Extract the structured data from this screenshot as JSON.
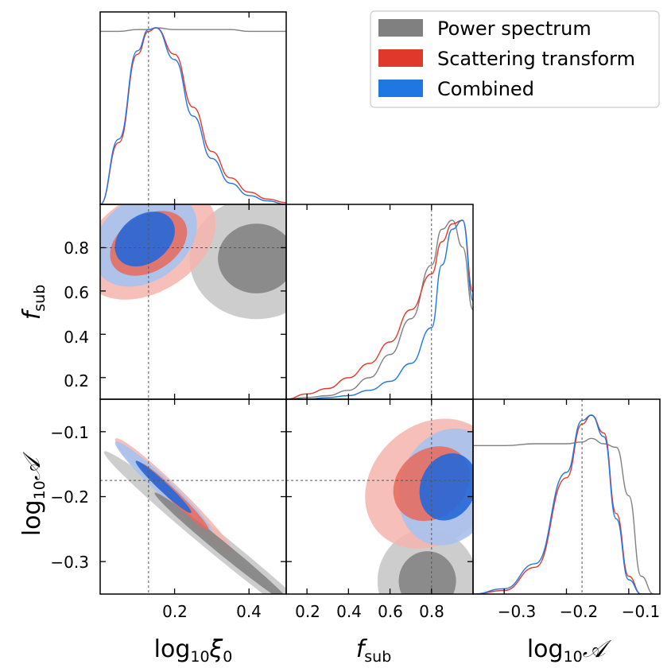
{
  "chart_data": {
    "type": "corner",
    "title": "",
    "parameters": [
      {
        "key": "xi",
        "label_base": "log",
        "label_sub": "10",
        "label_main": "ξ",
        "label_main_sub": "0",
        "truth": 0.13,
        "range": [
          0.0,
          0.5
        ],
        "ticks": [
          0.2,
          0.4
        ]
      },
      {
        "key": "fsub",
        "label_base": "",
        "label_sub": "",
        "label_main": "f",
        "label_main_sub": "sub",
        "truth": 0.8,
        "range": [
          0.1,
          1.0
        ],
        "ticks": [
          0.2,
          0.4,
          0.6,
          0.8
        ]
      },
      {
        "key": "logA",
        "label_base": "log",
        "label_sub": "10",
        "label_main": "𝒜",
        "label_main_sub": "",
        "truth": -0.175,
        "range": [
          -0.35,
          -0.05
        ],
        "ticks": [
          -0.3,
          -0.2,
          -0.1
        ]
      }
    ],
    "tick_labels": {
      "xi_x": [
        "0.2",
        "0.4"
      ],
      "fsub_x": [
        "0.2",
        "0.4",
        "0.6",
        "0.8"
      ],
      "fsub_y": [
        "0.2",
        "0.4",
        "0.6",
        "0.8"
      ],
      "logA_x": [
        "−0.3",
        "−0.2",
        "−0.1"
      ],
      "logA_y": [
        "−0.1",
        "−0.2",
        "−0.3"
      ]
    },
    "legend": {
      "placement": "top-right",
      "entries": [
        {
          "name": "Power spectrum",
          "color": "#808080"
        },
        {
          "name": "Scattering transform",
          "color": "#e0392b"
        },
        {
          "name": "Combined",
          "color": "#1f77e4"
        }
      ]
    },
    "fill_colors": {
      "power_spectrum": [
        "#c4c4c4",
        "#7f7f7f"
      ],
      "scattering_transform": [
        "#f4b4ad",
        "#e8685a"
      ],
      "combined": [
        "#a7c2ee",
        "#2668d8"
      ]
    },
    "marginals": {
      "xi": {
        "x": [
          0.0,
          0.05,
          0.1,
          0.13,
          0.15,
          0.2,
          0.25,
          0.3,
          0.35,
          0.4,
          0.45,
          0.5
        ],
        "power_spectrum": [
          0.98,
          0.98,
          0.99,
          0.99,
          1.0,
          0.99,
          0.99,
          0.99,
          0.99,
          0.98,
          0.98,
          0.98
        ],
        "scattering_transform": [
          0.0,
          0.35,
          0.85,
          0.98,
          1.0,
          0.85,
          0.55,
          0.3,
          0.15,
          0.07,
          0.03,
          0.01
        ],
        "combined": [
          0.0,
          0.37,
          0.87,
          0.99,
          1.0,
          0.82,
          0.5,
          0.26,
          0.12,
          0.05,
          0.02,
          0.0
        ]
      },
      "fsub": {
        "x": [
          0.1,
          0.2,
          0.3,
          0.4,
          0.5,
          0.6,
          0.7,
          0.8,
          0.85,
          0.9,
          0.95,
          1.0
        ],
        "power_spectrum": [
          0.0,
          0.01,
          0.02,
          0.05,
          0.12,
          0.25,
          0.45,
          0.75,
          0.95,
          1.0,
          0.85,
          0.5
        ],
        "scattering_transform": [
          0.0,
          0.03,
          0.06,
          0.12,
          0.2,
          0.32,
          0.5,
          0.7,
          0.88,
          0.98,
          1.0,
          0.6
        ],
        "combined": [
          0.0,
          0.0,
          0.01,
          0.02,
          0.05,
          0.1,
          0.2,
          0.4,
          0.75,
          0.95,
          1.0,
          0.55
        ]
      },
      "logA": {
        "x": [
          -0.35,
          -0.3,
          -0.25,
          -0.2,
          -0.175,
          -0.16,
          -0.14,
          -0.12,
          -0.1,
          -0.08,
          -0.06
        ],
        "power_spectrum": [
          0.83,
          0.83,
          0.84,
          0.84,
          0.85,
          0.87,
          0.84,
          0.82,
          0.55,
          0.1,
          0.0
        ],
        "scattering_transform": [
          0.0,
          0.02,
          0.15,
          0.65,
          0.95,
          1.0,
          0.9,
          0.45,
          0.1,
          0.0,
          0.0
        ],
        "combined": [
          0.0,
          0.03,
          0.17,
          0.68,
          0.97,
          1.0,
          0.88,
          0.42,
          0.08,
          0.0,
          0.0
        ]
      }
    },
    "joint_2d": {
      "xi_fsub": {
        "power_spectrum": {
          "mean": [
            0.42,
            0.75
          ],
          "sigma": [
            0.09,
            0.14
          ],
          "rho": 0.0
        },
        "scattering_transform": {
          "mean": [
            0.13,
            0.82
          ],
          "sigma": [
            0.09,
            0.13
          ],
          "rho": 0.35
        },
        "combined": {
          "mean": [
            0.12,
            0.84
          ],
          "sigma": [
            0.07,
            0.11
          ],
          "rho": 0.3
        }
      },
      "xi_logA": {
        "power_spectrum": {
          "mean": [
            0.33,
            -0.28
          ],
          "sigma": [
            0.16,
            0.075
          ],
          "rho": -0.99
        },
        "scattering_transform": {
          "mean": [
            0.2,
            -0.2
          ],
          "sigma": [
            0.08,
            0.045
          ],
          "rho": -0.975
        },
        "combined": {
          "mean": [
            0.17,
            -0.185
          ],
          "sigma": [
            0.065,
            0.035
          ],
          "rho": -0.97
        }
      },
      "fsub_logA": {
        "power_spectrum": {
          "mean": [
            0.78,
            -0.33
          ],
          "sigma": [
            0.12,
            0.04
          ],
          "rho": 0.0
        },
        "scattering_transform": {
          "mean": [
            0.8,
            -0.18
          ],
          "sigma": [
            0.16,
            0.05
          ],
          "rho": 0.2
        },
        "combined": {
          "mean": [
            0.88,
            -0.185
          ],
          "sigma": [
            0.12,
            0.045
          ],
          "rho": 0.15
        }
      }
    }
  }
}
